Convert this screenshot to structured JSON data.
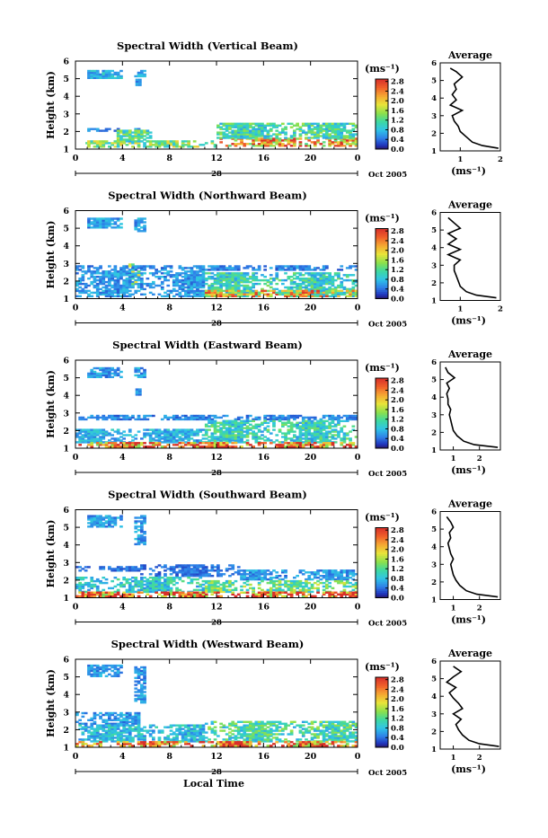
{
  "figure": {
    "xlabel": "Local Time",
    "unit_label": "(ms⁻¹)",
    "avg_title": "Average",
    "avg_xlabel": "(ms⁻¹)",
    "ylabel": "Height (km)",
    "day_label": "28",
    "month_label": "Oct 2005"
  },
  "chart_data": [
    {
      "type": "heatmap",
      "title": "Spectral Width (Vertical Beam)",
      "x_ticks": [
        "0",
        "4",
        "8",
        "12",
        "16",
        "20",
        "0"
      ],
      "xlim": [
        0,
        24
      ],
      "y_ticks": [
        "1",
        "2",
        "3",
        "4",
        "5",
        "6"
      ],
      "ylim": [
        1,
        6
      ],
      "colorbar_ticks": [
        "0.0",
        "0.4",
        "0.8",
        "1.2",
        "1.6",
        "2.0",
        "2.4",
        "2.8"
      ],
      "colorbar_range": [
        0,
        2.9
      ],
      "regions": [
        {
          "t": [
            1.0,
            4.0
          ],
          "h": [
            5.0,
            5.45
          ],
          "w": 0.7
        },
        {
          "t": [
            5.0,
            5.8
          ],
          "h": [
            5.1,
            5.45
          ],
          "w": 0.6
        },
        {
          "t": [
            5.1,
            5.5
          ],
          "h": [
            4.6,
            4.9
          ],
          "w": 0.5
        },
        {
          "t": [
            0.6,
            1.0
          ],
          "h": [
            1.3,
            1.5
          ],
          "w": 1.0
        },
        {
          "t": [
            1.0,
            12.0
          ],
          "h": [
            1.1,
            1.5
          ],
          "w": 1.4
        },
        {
          "t": [
            1.0,
            5.5
          ],
          "h": [
            2.0,
            2.2
          ],
          "w": 0.5
        },
        {
          "t": [
            3.5,
            6.5
          ],
          "h": [
            1.4,
            2.1
          ],
          "w": 1.2
        },
        {
          "t": [
            12.0,
            24.0
          ],
          "h": [
            1.15,
            1.6
          ],
          "w": 2.2
        },
        {
          "t": [
            12.0,
            24.0
          ],
          "h": [
            1.6,
            2.5
          ],
          "w": 1.1
        }
      ],
      "average_profile": {
        "xlim": [
          0.5,
          2
        ],
        "x_ticks": [
          "1",
          "2"
        ],
        "y_ticks": [
          "1",
          "2",
          "3",
          "4",
          "5",
          "6"
        ],
        "ylim": [
          1,
          6
        ],
        "height": [
          5.7,
          5.5,
          5.2,
          4.8,
          4.5,
          4.2,
          3.9,
          3.6,
          3.3,
          3.0,
          2.7,
          2.4,
          2.1,
          1.8,
          1.5,
          1.3,
          1.15
        ],
        "width": [
          0.75,
          0.9,
          1.05,
          0.85,
          0.9,
          0.8,
          0.9,
          0.75,
          1.05,
          0.8,
          0.85,
          0.95,
          1.0,
          1.15,
          1.3,
          1.55,
          1.95
        ]
      }
    },
    {
      "type": "heatmap",
      "title": "Spectral Width (Northward Beam)",
      "x_ticks": [
        "0",
        "4",
        "8",
        "12",
        "16",
        "20",
        "0"
      ],
      "xlim": [
        0,
        24
      ],
      "y_ticks": [
        "1",
        "2",
        "3",
        "4",
        "5",
        "6"
      ],
      "ylim": [
        1,
        6
      ],
      "colorbar_ticks": [
        "0.0",
        "0.4",
        "0.8",
        "1.2",
        "1.6",
        "2.0",
        "2.4",
        "2.8"
      ],
      "colorbar_range": [
        0,
        2.9
      ],
      "regions": [
        {
          "t": [
            1.0,
            4.0
          ],
          "h": [
            5.0,
            5.5
          ],
          "w": 0.6
        },
        {
          "t": [
            5.0,
            5.8
          ],
          "h": [
            4.8,
            5.5
          ],
          "w": 0.6
        },
        {
          "t": [
            0.0,
            24.0
          ],
          "h": [
            2.6,
            2.9
          ],
          "w": 0.5
        },
        {
          "t": [
            0.0,
            11.0
          ],
          "h": [
            1.1,
            2.6
          ],
          "w": 0.6
        },
        {
          "t": [
            4.5,
            5.5
          ],
          "h": [
            1.8,
            3.0
          ],
          "w": 1.5
        },
        {
          "t": [
            11.0,
            24.0
          ],
          "h": [
            1.1,
            2.5
          ],
          "w": 1.0
        },
        {
          "t": [
            11.0,
            24.0
          ],
          "h": [
            1.1,
            1.5
          ],
          "w": 2.0
        }
      ],
      "average_profile": {
        "xlim": [
          0.5,
          2
        ],
        "x_ticks": [
          "1",
          "2"
        ],
        "y_ticks": [
          "1",
          "2",
          "3",
          "4",
          "5",
          "6"
        ],
        "ylim": [
          1,
          6
        ],
        "height": [
          5.7,
          5.4,
          5.1,
          4.8,
          4.5,
          4.2,
          3.9,
          3.6,
          3.3,
          3.0,
          2.7,
          2.4,
          2.1,
          1.8,
          1.5,
          1.3,
          1.15
        ],
        "width": [
          0.7,
          0.85,
          1.0,
          0.7,
          0.9,
          0.7,
          1.0,
          0.7,
          1.0,
          0.85,
          0.85,
          0.9,
          0.95,
          1.0,
          1.15,
          1.4,
          1.9
        ]
      }
    },
    {
      "type": "heatmap",
      "title": "Spectral Width (Eastward Beam)",
      "x_ticks": [
        "0",
        "4",
        "8",
        "12",
        "16",
        "20",
        "0"
      ],
      "xlim": [
        0,
        24
      ],
      "y_ticks": [
        "1",
        "2",
        "3",
        "4",
        "5",
        "6"
      ],
      "ylim": [
        1,
        6
      ],
      "colorbar_ticks": [
        "0.0",
        "0.4",
        "0.8",
        "1.2",
        "1.6",
        "2.0",
        "2.4",
        "2.8"
      ],
      "colorbar_range": [
        0,
        2.9
      ],
      "regions": [
        {
          "t": [
            1.0,
            4.0
          ],
          "h": [
            5.0,
            5.5
          ],
          "w": 0.6
        },
        {
          "t": [
            5.0,
            5.8
          ],
          "h": [
            5.0,
            5.5
          ],
          "w": 0.6
        },
        {
          "t": [
            5.1,
            5.4
          ],
          "h": [
            4.0,
            4.3
          ],
          "w": 0.5
        },
        {
          "t": [
            0.0,
            24.0
          ],
          "h": [
            2.6,
            2.9
          ],
          "w": 0.5
        },
        {
          "t": [
            0.0,
            11.0
          ],
          "h": [
            1.3,
            2.1
          ],
          "w": 0.7
        },
        {
          "t": [
            11.0,
            24.0
          ],
          "h": [
            1.3,
            2.6
          ],
          "w": 1.0
        },
        {
          "t": [
            0.0,
            24.0
          ],
          "h": [
            1.05,
            1.3
          ],
          "w": 2.5
        }
      ],
      "average_profile": {
        "xlim": [
          0.5,
          2.8
        ],
        "x_ticks": [
          "1",
          "2"
        ],
        "y_ticks": [
          "1",
          "2",
          "3",
          "4",
          "5",
          "6"
        ],
        "ylim": [
          1,
          6
        ],
        "height": [
          5.7,
          5.4,
          5.1,
          4.8,
          4.5,
          4.2,
          3.9,
          3.6,
          3.3,
          3.0,
          2.7,
          2.4,
          2.1,
          1.8,
          1.5,
          1.3,
          1.15
        ],
        "width": [
          0.7,
          0.8,
          1.05,
          0.75,
          0.85,
          0.75,
          0.8,
          0.8,
          0.9,
          0.85,
          0.9,
          0.95,
          1.0,
          1.15,
          1.4,
          1.8,
          2.7
        ]
      }
    },
    {
      "type": "heatmap",
      "title": "Spectral Width (Southward Beam)",
      "x_ticks": [
        "0",
        "4",
        "8",
        "12",
        "16",
        "20",
        "0"
      ],
      "xlim": [
        0,
        24
      ],
      "y_ticks": [
        "1",
        "2",
        "3",
        "4",
        "5",
        "6"
      ],
      "ylim": [
        1,
        6
      ],
      "colorbar_ticks": [
        "0.0",
        "0.4",
        "0.8",
        "1.2",
        "1.6",
        "2.0",
        "2.4",
        "2.8"
      ],
      "colorbar_range": [
        0,
        2.9
      ],
      "regions": [
        {
          "t": [
            1.0,
            4.0
          ],
          "h": [
            5.0,
            5.6
          ],
          "w": 0.6
        },
        {
          "t": [
            5.0,
            5.8
          ],
          "h": [
            4.0,
            5.6
          ],
          "w": 0.6
        },
        {
          "t": [
            0.0,
            5.5
          ],
          "h": [
            2.5,
            2.8
          ],
          "w": 0.4
        },
        {
          "t": [
            5.5,
            14.0
          ],
          "h": [
            2.2,
            2.9
          ],
          "w": 0.4
        },
        {
          "t": [
            14.0,
            24.0
          ],
          "h": [
            2.0,
            2.6
          ],
          "w": 0.6
        },
        {
          "t": [
            0.0,
            11.0
          ],
          "h": [
            1.3,
            2.2
          ],
          "w": 0.9
        },
        {
          "t": [
            11.0,
            24.0
          ],
          "h": [
            1.3,
            2.0
          ],
          "w": 1.3
        },
        {
          "t": [
            0.0,
            24.0
          ],
          "h": [
            1.05,
            1.3
          ],
          "w": 2.5
        }
      ],
      "average_profile": {
        "xlim": [
          0.5,
          2.8
        ],
        "x_ticks": [
          "1",
          "2"
        ],
        "y_ticks": [
          "1",
          "2",
          "3",
          "4",
          "5",
          "6"
        ],
        "ylim": [
          1,
          6
        ],
        "height": [
          5.7,
          5.4,
          5.1,
          4.8,
          4.5,
          4.2,
          3.9,
          3.6,
          3.3,
          3.0,
          2.7,
          2.4,
          2.1,
          1.8,
          1.5,
          1.3,
          1.15
        ],
        "width": [
          0.75,
          0.9,
          1.0,
          0.85,
          0.9,
          0.8,
          0.85,
          0.9,
          1.0,
          0.9,
          0.95,
          1.0,
          1.1,
          1.25,
          1.5,
          1.9,
          2.7
        ]
      }
    },
    {
      "type": "heatmap",
      "title": "Spectral Width (Westward Beam)",
      "x_ticks": [
        "0",
        "4",
        "8",
        "12",
        "16",
        "20",
        "0"
      ],
      "xlim": [
        0,
        24
      ],
      "y_ticks": [
        "1",
        "2",
        "3",
        "4",
        "5",
        "6"
      ],
      "ylim": [
        1,
        6
      ],
      "colorbar_ticks": [
        "0.0",
        "0.4",
        "0.8",
        "1.2",
        "1.6",
        "2.0",
        "2.4",
        "2.8"
      ],
      "colorbar_range": [
        0,
        2.9
      ],
      "regions": [
        {
          "t": [
            1.0,
            4.0
          ],
          "h": [
            5.0,
            5.6
          ],
          "w": 0.6
        },
        {
          "t": [
            5.0,
            5.8
          ],
          "h": [
            3.5,
            5.6
          ],
          "w": 0.6
        },
        {
          "t": [
            0.0,
            5.5
          ],
          "h": [
            2.3,
            3.0
          ],
          "w": 0.6
        },
        {
          "t": [
            0.0,
            11.0
          ],
          "h": [
            1.3,
            2.3
          ],
          "w": 0.8
        },
        {
          "t": [
            11.0,
            24.0
          ],
          "h": [
            1.3,
            2.5
          ],
          "w": 1.1
        },
        {
          "t": [
            0.0,
            24.0
          ],
          "h": [
            1.05,
            1.3
          ],
          "w": 2.4
        }
      ],
      "average_profile": {
        "xlim": [
          0.5,
          2.8
        ],
        "x_ticks": [
          "1",
          "2"
        ],
        "y_ticks": [
          "1",
          "2",
          "3",
          "4",
          "5",
          "6"
        ],
        "ylim": [
          1,
          6
        ],
        "height": [
          5.7,
          5.4,
          5.1,
          4.8,
          4.5,
          4.2,
          3.9,
          3.6,
          3.3,
          3.0,
          2.7,
          2.4,
          2.1,
          1.8,
          1.5,
          1.3,
          1.15
        ],
        "width": [
          1.0,
          1.3,
          1.0,
          0.75,
          1.1,
          0.85,
          1.0,
          1.2,
          1.35,
          1.0,
          1.3,
          1.1,
          1.2,
          1.35,
          1.6,
          2.0,
          2.75
        ]
      }
    }
  ]
}
